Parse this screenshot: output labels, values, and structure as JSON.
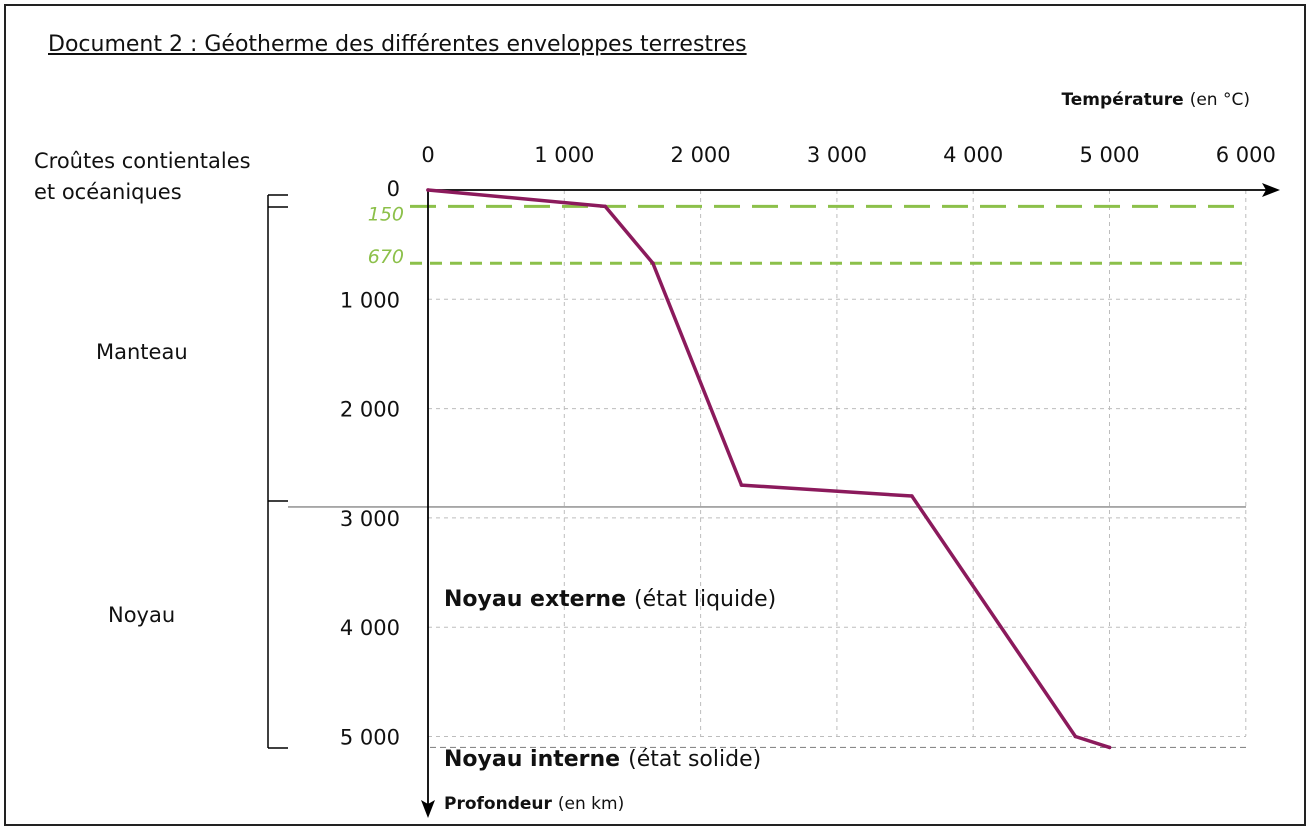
{
  "document_title": "Document 2 : Géotherme des différentes enveloppes terrestres",
  "colors": {
    "curve": "#8b1a5c",
    "limits": "#8cc04a",
    "grid": "#bdbdbd",
    "axis": "#000000"
  },
  "layers": {
    "crust_line1": "Croûtes contientales",
    "crust_line2": "et océaniques",
    "mantle": "Manteau",
    "core": "Noyau"
  },
  "axis_labels": {
    "x_bold": "Température",
    "x_rest": "(en °C)",
    "y_bold": "Profondeur",
    "y_rest": "(en km)"
  },
  "core_labels": {
    "outer_bold": "Noyau externe",
    "outer_rest": "(état liquide)",
    "inner_bold": "Noyau interne",
    "inner_rest": "(état solide)"
  },
  "chart_data": {
    "type": "line",
    "title": "Géotherme des différentes enveloppes terrestres",
    "xlabel": "Température (en °C)",
    "ylabel": "Profondeur (en km)",
    "xlim": [
      0,
      6000
    ],
    "ylim": [
      0,
      5100
    ],
    "y_inverted": true,
    "grid": true,
    "x_ticks": [
      {
        "value": 0,
        "label": "0"
      },
      {
        "value": 1000,
        "label": "1 000"
      },
      {
        "value": 2000,
        "label": "2 000"
      },
      {
        "value": 3000,
        "label": "3 000"
      },
      {
        "value": 4000,
        "label": "4 000"
      },
      {
        "value": 5000,
        "label": "5 000"
      },
      {
        "value": 6000,
        "label": "6 000"
      }
    ],
    "y_ticks": [
      {
        "value": 0,
        "label": "0"
      },
      {
        "value": 1000,
        "label": "1 000"
      },
      {
        "value": 2000,
        "label": "2 000"
      },
      {
        "value": 3000,
        "label": "3 000"
      },
      {
        "value": 4000,
        "label": "4 000"
      },
      {
        "value": 5000,
        "label": "5 000"
      }
    ],
    "limit_lines": [
      {
        "depth": 150,
        "label": "150"
      },
      {
        "depth": 670,
        "label": "670"
      }
    ],
    "boundaries": [
      {
        "depth": 2900,
        "name": "Noyau externe (état liquide)"
      },
      {
        "depth": 5100,
        "name": "Noyau interne (état solide)"
      }
    ],
    "series": [
      {
        "x": [
          0,
          1300,
          1650,
          2300,
          3550,
          4750,
          5000
        ],
        "y": [
          0,
          150,
          670,
          2700,
          2800,
          5000,
          5100
        ]
      }
    ]
  }
}
